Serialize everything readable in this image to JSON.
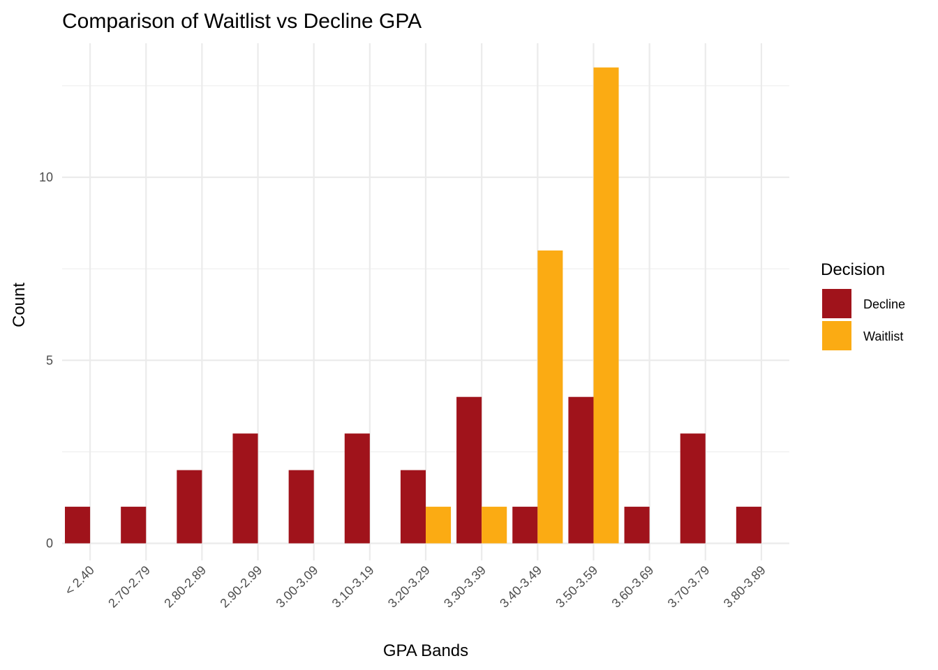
{
  "chart_data": {
    "type": "bar",
    "title": "Comparison of Waitlist vs Decline GPA",
    "xlabel": "GPA Bands",
    "ylabel": "Count",
    "categories": [
      "< 2.40",
      "2.70-2.79",
      "2.80-2.89",
      "2.90-2.99",
      "3.00-3.09",
      "3.10-3.19",
      "3.20-3.29",
      "3.30-3.39",
      "3.40-3.49",
      "3.50-3.59",
      "3.60-3.69",
      "3.70-3.79",
      "3.80-3.89"
    ],
    "series": [
      {
        "name": "Decline",
        "color": "#a0131b",
        "values": [
          1,
          1,
          2,
          3,
          2,
          3,
          2,
          4,
          1,
          4,
          1,
          3,
          1
        ]
      },
      {
        "name": "Waitlist",
        "color": "#fbab13",
        "values": [
          0,
          0,
          0,
          0,
          0,
          0,
          1,
          1,
          8,
          13,
          0,
          0,
          0
        ]
      }
    ],
    "ylim": [
      0,
      13.65
    ],
    "yticks": [
      0,
      5,
      10
    ],
    "grid": true,
    "legend": {
      "title": "Decision",
      "position": "right"
    }
  }
}
